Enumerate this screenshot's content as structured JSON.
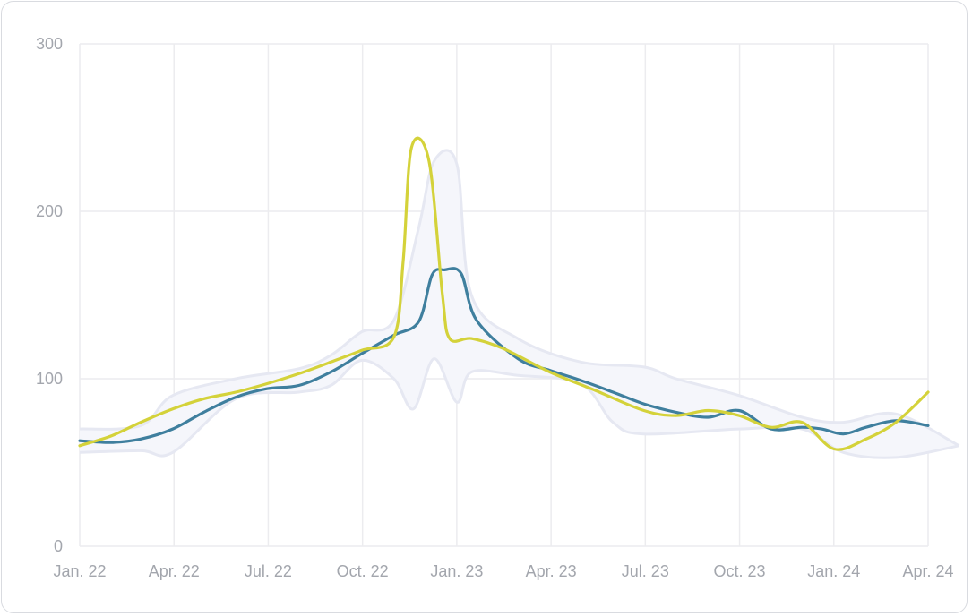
{
  "colors": {
    "background": "#ffffff",
    "border": "#d9dbe0",
    "grid": "#ececef",
    "tick_text": "#a3a6ad",
    "band_fill": "#f5f6fb",
    "band_stroke": "#e6e8f2"
  },
  "chart_data": {
    "type": "line",
    "title": "",
    "xlabel": "",
    "ylabel": "",
    "x_ticks": [
      "Jan. 22",
      "Apr. 22",
      "Jul. 22",
      "Oct. 22",
      "Jan. 23",
      "Apr. 23",
      "Jul. 23",
      "Oct. 23",
      "Jan. 24",
      "Apr. 24"
    ],
    "y_ticks": [
      "0",
      "100",
      "200",
      "300"
    ],
    "ylim": [
      0,
      300
    ],
    "xlim": [
      "2022-01-01",
      "2024-04-01"
    ],
    "grid": true,
    "legend": "none",
    "series": [
      {
        "color": "#3f7f9e",
        "points": [
          [
            "2022-01-01",
            63
          ],
          [
            "2022-02-01",
            62
          ],
          [
            "2022-03-01",
            64
          ],
          [
            "2022-04-01",
            70
          ],
          [
            "2022-05-01",
            80
          ],
          [
            "2022-06-01",
            89
          ],
          [
            "2022-07-01",
            94
          ],
          [
            "2022-08-01",
            96
          ],
          [
            "2022-09-01",
            104
          ],
          [
            "2022-10-01",
            115
          ],
          [
            "2022-11-01",
            126
          ],
          [
            "2022-11-25",
            134
          ],
          [
            "2022-12-08",
            162
          ],
          [
            "2022-12-20",
            165
          ],
          [
            "2023-01-05",
            163
          ],
          [
            "2023-01-20",
            135
          ],
          [
            "2023-03-01",
            112
          ],
          [
            "2023-04-01",
            105
          ],
          [
            "2023-05-01",
            99
          ],
          [
            "2023-06-01",
            92
          ],
          [
            "2023-07-01",
            85
          ],
          [
            "2023-08-01",
            80
          ],
          [
            "2023-09-01",
            77
          ],
          [
            "2023-10-01",
            81
          ],
          [
            "2023-11-01",
            70
          ],
          [
            "2023-12-01",
            71
          ],
          [
            "2023-12-20",
            70
          ],
          [
            "2024-01-10",
            67
          ],
          [
            "2024-02-01",
            71
          ],
          [
            "2024-03-01",
            75
          ],
          [
            "2024-04-01",
            72
          ]
        ]
      },
      {
        "color": "#d4d23a",
        "points": [
          [
            "2022-01-01",
            60
          ],
          [
            "2022-02-01",
            66
          ],
          [
            "2022-03-01",
            74
          ],
          [
            "2022-04-01",
            82
          ],
          [
            "2022-05-01",
            88
          ],
          [
            "2022-06-01",
            92
          ],
          [
            "2022-07-01",
            97
          ],
          [
            "2022-08-01",
            103
          ],
          [
            "2022-09-01",
            110
          ],
          [
            "2022-10-01",
            117
          ],
          [
            "2022-11-01",
            125
          ],
          [
            "2022-11-10",
            170
          ],
          [
            "2022-11-18",
            238
          ],
          [
            "2022-12-05",
            230
          ],
          [
            "2022-12-18",
            150
          ],
          [
            "2022-12-25",
            124
          ],
          [
            "2023-01-15",
            124
          ],
          [
            "2023-02-15",
            118
          ],
          [
            "2023-04-01",
            104
          ],
          [
            "2023-05-15",
            93
          ],
          [
            "2023-07-01",
            81
          ],
          [
            "2023-08-01",
            78
          ],
          [
            "2023-09-01",
            81
          ],
          [
            "2023-10-01",
            78
          ],
          [
            "2023-11-01",
            71
          ],
          [
            "2023-12-01",
            74
          ],
          [
            "2024-01-01",
            58
          ],
          [
            "2024-02-01",
            64
          ],
          [
            "2024-03-01",
            74
          ],
          [
            "2024-04-01",
            92
          ]
        ]
      }
    ],
    "range_band": {
      "upper": [
        [
          "2022-01-01",
          70
        ],
        [
          "2022-03-01",
          72
        ],
        [
          "2022-04-01",
          90
        ],
        [
          "2022-06-01",
          100
        ],
        [
          "2022-08-01",
          106
        ],
        [
          "2022-09-01",
          114
        ],
        [
          "2022-10-01",
          128
        ],
        [
          "2022-11-01",
          135
        ],
        [
          "2022-11-25",
          190
        ],
        [
          "2022-12-10",
          230
        ],
        [
          "2023-01-01",
          228
        ],
        [
          "2023-01-15",
          150
        ],
        [
          "2023-03-01",
          124
        ],
        [
          "2023-05-01",
          110
        ],
        [
          "2023-07-01",
          107
        ],
        [
          "2023-08-01",
          100
        ],
        [
          "2023-10-01",
          90
        ],
        [
          "2023-12-01",
          77
        ],
        [
          "2024-01-10",
          74
        ],
        [
          "2024-03-01",
          79
        ],
        [
          "2024-05-01",
          60
        ]
      ],
      "lower": [
        [
          "2022-01-01",
          56
        ],
        [
          "2022-03-01",
          57
        ],
        [
          "2022-04-01",
          56
        ],
        [
          "2022-06-01",
          88
        ],
        [
          "2022-08-01",
          92
        ],
        [
          "2022-09-01",
          96
        ],
        [
          "2022-10-01",
          111
        ],
        [
          "2022-11-01",
          100
        ],
        [
          "2022-11-20",
          82
        ],
        [
          "2022-12-10",
          112
        ],
        [
          "2023-01-01",
          86
        ],
        [
          "2023-01-15",
          104
        ],
        [
          "2023-03-01",
          102
        ],
        [
          "2023-05-01",
          97
        ],
        [
          "2023-06-01",
          74
        ],
        [
          "2023-07-01",
          67
        ],
        [
          "2023-10-01",
          70
        ],
        [
          "2023-12-01",
          70
        ],
        [
          "2024-01-10",
          56
        ],
        [
          "2024-03-01",
          53
        ],
        [
          "2024-05-01",
          60
        ]
      ]
    }
  }
}
